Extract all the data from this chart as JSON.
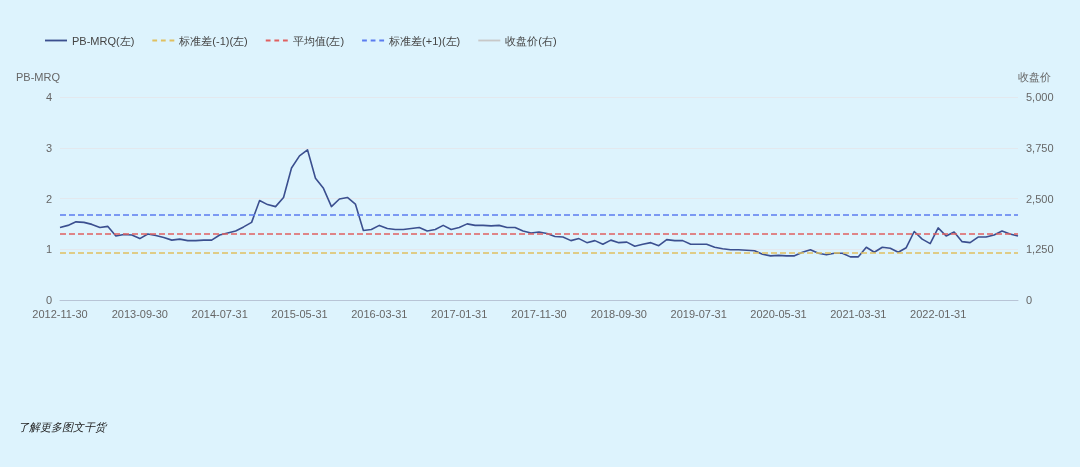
{
  "chart_data": {
    "type": "line",
    "ylabel": "PB-MRQ",
    "y2label": "收盘价",
    "categories": [
      "2012-11-30",
      null,
      null,
      null,
      null,
      null,
      null,
      null,
      null,
      null,
      "2013-09-30",
      null,
      null,
      null,
      null,
      null,
      null,
      null,
      null,
      null,
      "2014-07-31",
      null,
      null,
      null,
      null,
      null,
      null,
      null,
      null,
      null,
      "2015-05-31",
      null,
      null,
      null,
      null,
      null,
      null,
      null,
      null,
      null,
      "2016-03-31",
      null,
      null,
      null,
      null,
      null,
      null,
      null,
      null,
      null,
      "2017-01-31",
      null,
      null,
      null,
      null,
      null,
      null,
      null,
      null,
      null,
      "2017-11-30",
      null,
      null,
      null,
      null,
      null,
      null,
      null,
      null,
      null,
      "2018-09-30",
      null,
      null,
      null,
      null,
      null,
      null,
      null,
      null,
      null,
      "2019-07-31",
      null,
      null,
      null,
      null,
      null,
      null,
      null,
      null,
      null,
      "2020-05-31",
      null,
      null,
      null,
      null,
      null,
      null,
      null,
      null,
      null,
      "2021-03-31",
      null,
      null,
      null,
      null,
      null,
      null,
      null,
      null,
      null,
      "2022-01-31",
      null,
      null,
      null,
      null,
      null,
      null,
      null,
      null,
      null,
      null
    ],
    "series": [
      {
        "name": "PB-MRQ(左)",
        "color": "#3b4f8f",
        "values": [
          1.43,
          1.47,
          1.54,
          1.53,
          1.49,
          1.43,
          1.45,
          1.26,
          1.29,
          1.28,
          1.21,
          1.3,
          1.27,
          1.23,
          1.18,
          1.2,
          1.17,
          1.17,
          1.18,
          1.18,
          1.28,
          1.32,
          1.36,
          1.44,
          1.53,
          1.96,
          1.88,
          1.84,
          2.02,
          2.6,
          2.84,
          2.96,
          2.4,
          2.2,
          1.84,
          1.99,
          2.02,
          1.89,
          1.37,
          1.39,
          1.47,
          1.41,
          1.39,
          1.39,
          1.41,
          1.43,
          1.36,
          1.39,
          1.47,
          1.39,
          1.43,
          1.5,
          1.47,
          1.47,
          1.46,
          1.47,
          1.43,
          1.43,
          1.36,
          1.32,
          1.34,
          1.31,
          1.25,
          1.24,
          1.17,
          1.21,
          1.13,
          1.17,
          1.1,
          1.18,
          1.13,
          1.14,
          1.06,
          1.1,
          1.13,
          1.07,
          1.19,
          1.17,
          1.17,
          1.1,
          1.1,
          1.1,
          1.04,
          1.01,
          0.99,
          0.99,
          0.98,
          0.97,
          0.9,
          0.87,
          0.88,
          0.87,
          0.87,
          0.94,
          0.99,
          0.92,
          0.89,
          0.92,
          0.92,
          0.85,
          0.85,
          1.04,
          0.94,
          1.04,
          1.02,
          0.94,
          1.03,
          1.35,
          1.2,
          1.11,
          1.42,
          1.26,
          1.34,
          1.15,
          1.13,
          1.24,
          1.24,
          1.28,
          1.36,
          1.3,
          1.26
        ]
      },
      {
        "name": "收盘价(右)",
        "color": "#c8c8c8",
        "values": [
          null,
          null,
          null,
          null,
          null,
          null,
          null,
          null,
          null,
          null,
          null,
          null,
          null,
          null,
          null,
          null,
          null,
          null,
          null,
          null,
          null,
          null,
          null,
          null,
          null,
          null,
          null,
          null,
          null,
          null,
          null,
          null,
          null,
          null,
          null,
          null,
          null,
          null,
          null,
          null,
          null,
          null,
          null,
          null,
          null,
          null,
          null,
          null,
          null,
          null,
          null,
          null,
          null,
          null,
          null,
          null,
          null,
          null,
          null,
          null,
          null,
          null,
          null,
          null,
          null,
          null,
          null,
          null,
          null,
          null,
          null,
          null,
          null,
          null,
          null,
          null,
          null,
          null,
          null,
          null,
          null,
          null,
          null,
          null,
          null,
          null,
          null,
          null,
          null,
          null,
          null,
          null,
          null,
          null,
          null,
          null,
          null,
          null,
          null,
          null,
          null,
          null,
          null,
          null,
          null,
          null,
          null,
          null,
          null,
          null,
          null,
          null,
          null,
          null,
          null,
          null,
          null,
          null,
          null,
          null,
          null
        ]
      }
    ],
    "ref_lines": [
      {
        "axis": "y",
        "value": 0.94,
        "label": "标准差(-1)(左)",
        "color": "#e0c060",
        "line_style": "dashed"
      },
      {
        "axis": "y",
        "value": 1.31,
        "label": "平均值(左)",
        "color": "#e06060",
        "line_style": "dashed"
      },
      {
        "axis": "y",
        "value": 1.68,
        "label": "标准差(+1)(左)",
        "color": "#5b7cf0",
        "line_style": "dashed"
      }
    ],
    "ylim": [
      0,
      4
    ],
    "yticks": [
      0,
      1,
      2,
      3,
      4
    ],
    "y2lim": [
      0,
      5000
    ],
    "y2ticks": [
      0,
      {
        "value": 1250,
        "label": "1,250"
      },
      {
        "value": 2500,
        "label": "2,500"
      },
      {
        "value": 3750,
        "label": "3,750"
      },
      {
        "value": 5000,
        "label": "5,000"
      }
    ],
    "grid": "y",
    "legend": "top left",
    "marker": "none",
    "line_style": "solid",
    "annotations": [
      "了解更多图文干货"
    ]
  }
}
